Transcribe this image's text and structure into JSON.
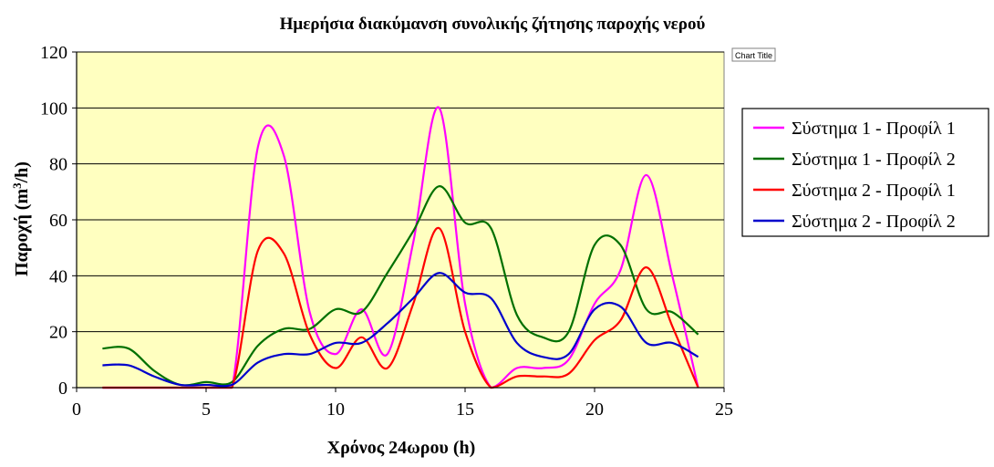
{
  "chart_data": {
    "type": "line",
    "title": "Ημερήσια διακύμανση συνολικής ζήτησης παροχής νερού",
    "xlabel": "Χρόνος 24ωρου (h)",
    "ylabel_main": "Παροχή (m",
    "ylabel_sup": "3",
    "ylabel_tail": "/h)",
    "xlim": [
      0,
      25
    ],
    "ylim": [
      0,
      120
    ],
    "xticks": [
      "0",
      "5",
      "10",
      "15",
      "20",
      "25"
    ],
    "yticks": [
      "0",
      "20",
      "40",
      "60",
      "80",
      "100",
      "120"
    ],
    "x": [
      1,
      2,
      3,
      4,
      5,
      6,
      7,
      8,
      9,
      10,
      11,
      12,
      13,
      14,
      15,
      16,
      17,
      18,
      19,
      20,
      21,
      22,
      23,
      24
    ],
    "series": [
      {
        "name": "Σύστημα 1 - Προφίλ 1",
        "color": "#ff00ff",
        "values": [
          0,
          0,
          0,
          0,
          0,
          0,
          86,
          83,
          27,
          12,
          28,
          12,
          52,
          100,
          30,
          0,
          7,
          7,
          10,
          30,
          42,
          76,
          40,
          0
        ]
      },
      {
        "name": "Σύστημα 1 - Προφίλ 2",
        "color": "#007000",
        "values": [
          14,
          14,
          6,
          1,
          2,
          2,
          15,
          21,
          21,
          28,
          27,
          41,
          56,
          72,
          59,
          57,
          26,
          18,
          20,
          51,
          51,
          28,
          27,
          19
        ]
      },
      {
        "name": "Σύστημα 2 - Προφίλ 1",
        "color": "#ff0000",
        "values": [
          0,
          0,
          0,
          0,
          0,
          0,
          49,
          48,
          19,
          7,
          18,
          7,
          30,
          57,
          20,
          0,
          4,
          4,
          5,
          17,
          24,
          43,
          22,
          0
        ]
      },
      {
        "name": "Σύστημα 2 - Προφίλ 2",
        "color": "#0000cc",
        "values": [
          8,
          8,
          4,
          1,
          1,
          1,
          9,
          12,
          12,
          16,
          16,
          23,
          32,
          41,
          34,
          32,
          16,
          11,
          12,
          28,
          29,
          16,
          16,
          11
        ]
      }
    ],
    "grid": "horizontal",
    "legend_position": "right",
    "plot_background": "#ffffc0",
    "chart_background": "#ffffff"
  },
  "tooltip": {
    "label": "Chart Title"
  }
}
